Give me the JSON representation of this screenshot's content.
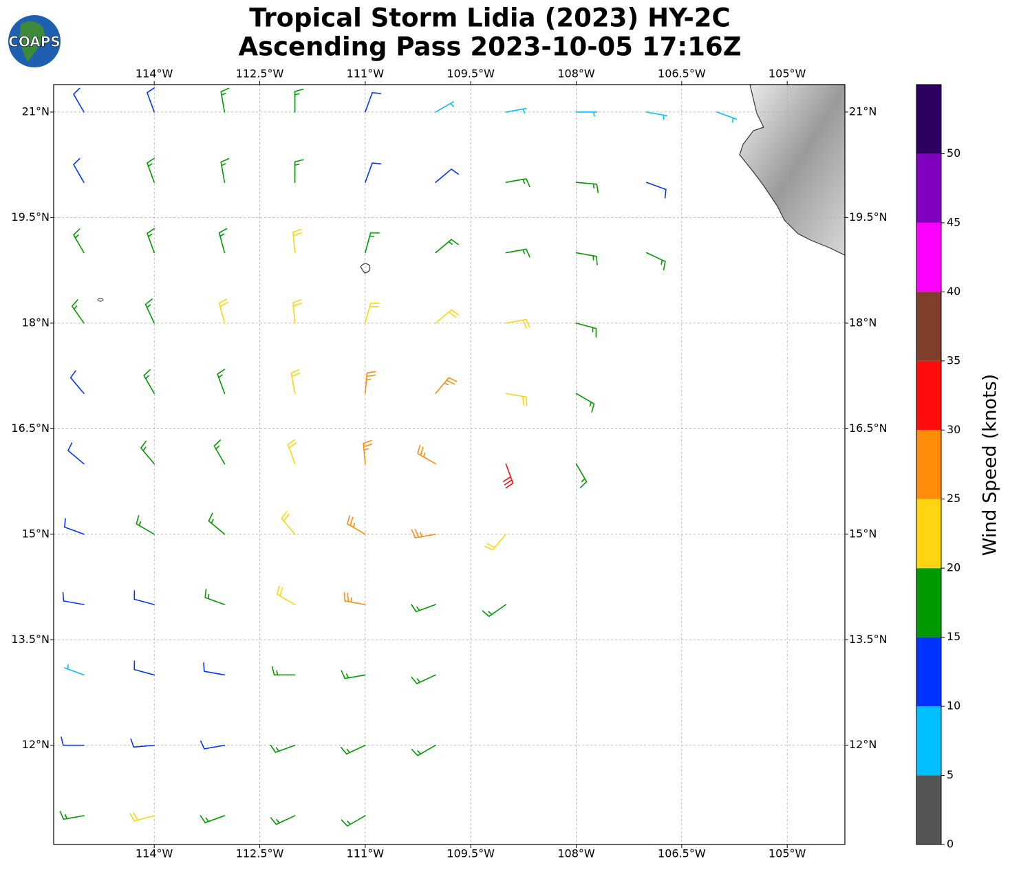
{
  "chart_data": {
    "type": "barbs",
    "title": [
      "Tropical Storm Lidia (2023) HY-2C",
      "Ascending Pass 2023-10-05 17:16Z"
    ],
    "logo": "COAPS",
    "xlim": [
      -115.43,
      -104.18
    ],
    "ylim": [
      10.59,
      21.39
    ],
    "xticks": [
      {
        "value": -114,
        "label": "114°W"
      },
      {
        "value": -112.5,
        "label": "112.5°W"
      },
      {
        "value": -111,
        "label": "111°W"
      },
      {
        "value": -109.5,
        "label": "109.5°W"
      },
      {
        "value": -108,
        "label": "108°W"
      },
      {
        "value": -106.5,
        "label": "106.5°W"
      },
      {
        "value": -105,
        "label": "105°W"
      }
    ],
    "yticks": [
      {
        "value": 12,
        "label": "12°N"
      },
      {
        "value": 13.5,
        "label": "13.5°N"
      },
      {
        "value": 15,
        "label": "15°N"
      },
      {
        "value": 16.5,
        "label": "16.5°N"
      },
      {
        "value": 18,
        "label": "18°N"
      },
      {
        "value": 19.5,
        "label": "19.5°N"
      },
      {
        "value": 21,
        "label": "21°N"
      }
    ],
    "grid": true,
    "colorbar": {
      "label": "Wind Speed (knots)",
      "bounds": [
        0,
        5,
        10,
        15,
        20,
        25,
        30,
        35,
        40,
        45,
        50,
        55
      ],
      "ticks": [
        0,
        5,
        10,
        15,
        20,
        25,
        30,
        35,
        40,
        45,
        50
      ],
      "colors": [
        "#555555",
        "#00bfff",
        "#0033ff",
        "#009900",
        "#ffd511",
        "#ff8c0a",
        "#ff0d0d",
        "#7f3f2a",
        "#ff00ff",
        "#8000c0",
        "#2e0060"
      ]
    },
    "barbs": {
      "lon": [
        -115,
        -114,
        -113,
        -112,
        -111,
        -110,
        -109,
        -108,
        -107,
        -106,
        -115,
        -114,
        -113,
        -112,
        -111,
        -110,
        -109,
        -108,
        -107,
        -115,
        -114,
        -113,
        -112,
        -111,
        -110,
        -109,
        -108,
        -107,
        -115,
        -114,
        -113,
        -112,
        -111,
        -110,
        -109,
        -108,
        -115,
        -114,
        -113,
        -112,
        -111,
        -110,
        -109,
        -108,
        -115,
        -114,
        -113,
        -112,
        -111,
        -110,
        -109,
        -108,
        -115,
        -114,
        -113,
        -112,
        -111,
        -110,
        -109,
        -115,
        -114,
        -113,
        -112,
        -111,
        -110,
        -109,
        -115,
        -114,
        -113,
        -112,
        -111,
        -110,
        -115,
        -114,
        -113,
        -112,
        -111,
        -110,
        -115,
        -114,
        -113,
        -112,
        -111
      ],
      "lat": [
        21,
        21,
        21,
        21,
        21,
        21,
        21,
        21,
        21,
        21,
        20,
        20,
        20,
        20,
        20,
        20,
        20,
        20,
        20,
        19,
        19,
        19,
        19,
        19,
        19,
        19,
        19,
        19,
        18,
        18,
        18,
        18,
        18,
        18,
        18,
        18,
        17,
        17,
        17,
        17,
        17,
        17,
        17,
        17,
        16,
        16,
        16,
        16,
        16,
        16,
        16,
        16,
        15,
        15,
        15,
        15,
        15,
        15,
        15,
        14,
        14,
        14,
        14,
        14,
        14,
        14,
        13,
        13,
        13,
        13,
        13,
        13,
        12,
        12,
        12,
        12,
        12,
        12,
        11,
        11,
        11,
        11,
        11
      ],
      "speed": [
        12,
        14,
        16,
        17,
        14,
        9,
        8,
        8,
        7,
        8,
        13,
        16,
        17,
        18,
        13,
        13,
        15,
        16,
        14,
        16,
        18,
        19,
        21,
        19,
        17,
        18,
        17,
        16,
        15,
        18,
        21,
        22,
        20,
        22,
        20,
        18,
        14,
        17,
        19,
        21,
        26,
        26,
        22,
        18,
        14,
        16,
        19,
        22,
        27,
        27,
        33,
        19,
        13,
        15,
        18,
        23,
        28,
        26,
        22,
        13,
        14,
        17,
        22,
        27,
        18,
        17,
        9,
        12,
        14,
        17,
        18,
        18,
        12,
        13,
        14,
        16,
        18,
        17,
        18,
        20,
        18,
        17,
        17
      ],
      "direction": [
        330,
        340,
        350,
        0,
        20,
        60,
        80,
        90,
        100,
        110,
        330,
        340,
        350,
        0,
        20,
        50,
        80,
        95,
        110,
        330,
        340,
        345,
        355,
        15,
        50,
        80,
        100,
        115,
        325,
        335,
        345,
        355,
        15,
        50,
        80,
        105,
        320,
        330,
        340,
        350,
        5,
        40,
        100,
        120,
        310,
        320,
        330,
        340,
        355,
        300,
        160,
        150,
        290,
        300,
        310,
        320,
        300,
        260,
        220,
        280,
        285,
        290,
        300,
        280,
        250,
        235,
        290,
        285,
        280,
        270,
        260,
        245,
        270,
        265,
        260,
        250,
        245,
        240,
        260,
        255,
        250,
        245,
        240
      ]
    }
  }
}
